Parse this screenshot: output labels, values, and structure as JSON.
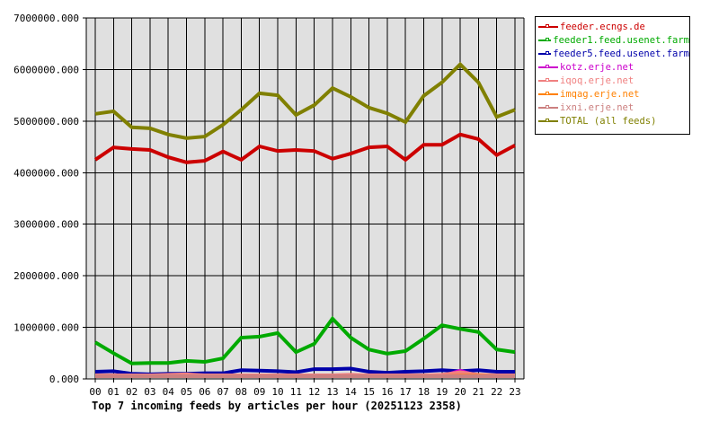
{
  "chart_data": {
    "type": "line",
    "title": "Top 7 incoming feeds by articles per hour (20251123 2358)",
    "xlabel": "",
    "ylabel": "",
    "ylim": [
      0,
      7000000
    ],
    "grid": true,
    "legend_position": "right-top",
    "y_ticks": [
      "0.000",
      "1000000.000",
      "2000000.000",
      "3000000.000",
      "4000000.000",
      "5000000.000",
      "6000000.000",
      "7000000.000"
    ],
    "categories": [
      "00",
      "01",
      "02",
      "03",
      "04",
      "05",
      "06",
      "07",
      "08",
      "09",
      "10",
      "11",
      "12",
      "13",
      "14",
      "15",
      "16",
      "17",
      "18",
      "19",
      "20",
      "21",
      "22",
      "23"
    ],
    "series": [
      {
        "name": "feeder.ecngs.de",
        "color": "#cc0000",
        "values": [
          4250000,
          4490000,
          4460000,
          4440000,
          4300000,
          4200000,
          4230000,
          4410000,
          4250000,
          4510000,
          4420000,
          4440000,
          4420000,
          4270000,
          4370000,
          4490000,
          4510000,
          4250000,
          4540000,
          4540000,
          4740000,
          4650000,
          4340000,
          4530000
        ]
      },
      {
        "name": "feeder1.feed.usenet.farm",
        "color": "#00aa00",
        "values": [
          710000,
          500000,
          300000,
          310000,
          310000,
          350000,
          330000,
          400000,
          800000,
          820000,
          890000,
          520000,
          680000,
          1170000,
          800000,
          570000,
          490000,
          540000,
          780000,
          1040000,
          970000,
          910000,
          570000,
          520000
        ]
      },
      {
        "name": "feeder5.feed.usenet.farm",
        "color": "#0000aa",
        "values": [
          140000,
          150000,
          100000,
          90000,
          100000,
          100000,
          110000,
          110000,
          170000,
          160000,
          150000,
          130000,
          190000,
          190000,
          200000,
          140000,
          120000,
          140000,
          150000,
          170000,
          150000,
          170000,
          140000,
          140000
        ]
      },
      {
        "name": "kotz.erje.net",
        "color": "#cc00cc",
        "values": [
          0,
          0,
          0,
          0,
          0,
          0,
          0,
          0,
          0,
          0,
          0,
          0,
          0,
          0,
          0,
          0,
          0,
          0,
          0,
          30000,
          160000,
          50000,
          40000,
          0
        ]
      },
      {
        "name": "iqoq.erje.net",
        "color": "#f08080",
        "values": [
          70000,
          70000,
          70000,
          70000,
          80000,
          90000,
          70000,
          70000,
          70000,
          70000,
          70000,
          70000,
          70000,
          70000,
          80000,
          70000,
          70000,
          70000,
          70000,
          80000,
          130000,
          80000,
          70000,
          70000
        ]
      },
      {
        "name": "imqag.erje.net",
        "color": "#ff8000",
        "values": [
          0,
          0,
          0,
          0,
          0,
          0,
          0,
          0,
          0,
          0,
          0,
          0,
          0,
          0,
          0,
          0,
          0,
          0,
          0,
          40000,
          60000,
          60000,
          0,
          0
        ]
      },
      {
        "name": "ixni.erje.net",
        "color": "#cc8080",
        "values": [
          40000,
          40000,
          40000,
          40000,
          40000,
          40000,
          40000,
          40000,
          40000,
          40000,
          40000,
          40000,
          40000,
          40000,
          40000,
          40000,
          40000,
          40000,
          40000,
          40000,
          40000,
          40000,
          40000,
          40000
        ]
      },
      {
        "name": "TOTAL (all feeds)",
        "color": "#808000",
        "values": [
          5140000,
          5190000,
          4880000,
          4860000,
          4740000,
          4670000,
          4700000,
          4930000,
          5220000,
          5540000,
          5500000,
          5120000,
          5310000,
          5640000,
          5470000,
          5260000,
          5150000,
          4980000,
          5490000,
          5750000,
          6100000,
          5750000,
          5080000,
          5220000
        ]
      }
    ]
  },
  "legend": {
    "items": [
      {
        "label": "feeder.ecngs.de",
        "color": "#cc0000"
      },
      {
        "label": "feeder1.feed.usenet.farm",
        "color": "#00aa00"
      },
      {
        "label": "feeder5.feed.usenet.farm",
        "color": "#0000aa"
      },
      {
        "label": "kotz.erje.net",
        "color": "#cc00cc"
      },
      {
        "label": "iqoq.erje.net",
        "color": "#f08080"
      },
      {
        "label": "imqag.erje.net",
        "color": "#ff8000"
      },
      {
        "label": "ixni.erje.net",
        "color": "#cc8080"
      },
      {
        "label": "TOTAL (all feeds)",
        "color": "#808000"
      }
    ]
  },
  "colors": {
    "plot_background": "#e0e0e0",
    "grid": "#000000"
  }
}
